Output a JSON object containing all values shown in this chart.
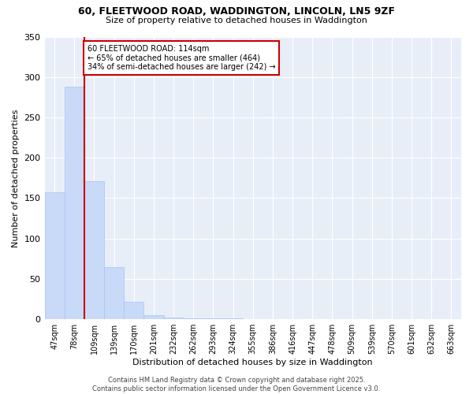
{
  "title_line1": "60, FLEETWOOD ROAD, WADDINGTON, LINCOLN, LN5 9ZF",
  "title_line2": "Size of property relative to detached houses in Waddington",
  "xlabel": "Distribution of detached houses by size in Waddington",
  "ylabel": "Number of detached properties",
  "bar_values": [
    157,
    288,
    171,
    65,
    22,
    5,
    2,
    1,
    1,
    1,
    0,
    0,
    0,
    0,
    0,
    0,
    0,
    0,
    0,
    0,
    0
  ],
  "categories": [
    "47sqm",
    "78sqm",
    "109sqm",
    "139sqm",
    "170sqm",
    "201sqm",
    "232sqm",
    "262sqm",
    "293sqm",
    "324sqm",
    "355sqm",
    "386sqm",
    "416sqm",
    "447sqm",
    "478sqm",
    "509sqm",
    "539sqm",
    "570sqm",
    "601sqm",
    "632sqm",
    "663sqm"
  ],
  "bar_color": "#c9daf8",
  "bar_edge_color": "#a4c2f4",
  "bg_color": "#e8eef8",
  "grid_color": "#ffffff",
  "vline_color": "#cc0000",
  "annotation_text": "60 FLEETWOOD ROAD: 114sqm\n← 65% of detached houses are smaller (464)\n34% of semi-detached houses are larger (242) →",
  "annotation_box_color": "#ffffff",
  "annotation_border_color": "#cc0000",
  "ylim": [
    0,
    350
  ],
  "yticks": [
    0,
    50,
    100,
    150,
    200,
    250,
    300,
    350
  ],
  "footer": "Contains HM Land Registry data © Crown copyright and database right 2025.\nContains public sector information licensed under the Open Government Licence v3.0."
}
